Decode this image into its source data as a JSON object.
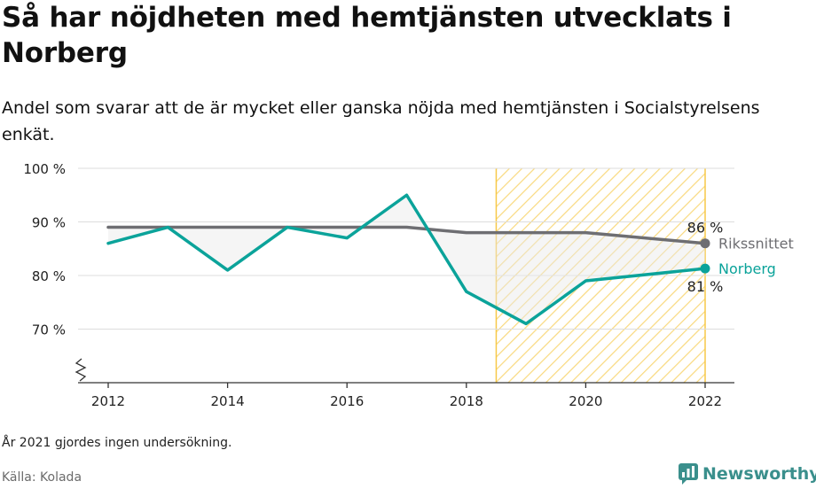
{
  "title": "Så har nöjdheten med hemtjänsten utvecklats i Norberg",
  "subtitle": "Andel som svarar att de är mycket eller ganska nöjda med hemtjänsten i Socialstyrelsens enkät.",
  "note": "År 2021 gjordes ingen undersökning.",
  "source": "Källa: Kolada",
  "brand": {
    "name": "Newsworthy",
    "icon": "newsworthy-logo-icon"
  },
  "colors": {
    "norberg": "#0ba39a",
    "riket": "#6e6e72",
    "highlight": "#f7c948"
  },
  "chart_data": {
    "type": "line",
    "x": [
      2012,
      2013,
      2014,
      2015,
      2016,
      2017,
      2018,
      2019,
      2020,
      2022
    ],
    "series": [
      {
        "name": "Rikssnittet",
        "values": [
          89,
          89,
          89,
          89,
          89,
          89,
          88,
          88,
          88,
          86
        ],
        "end_label": "86 %",
        "color": "#6e6e72"
      },
      {
        "name": "Norberg",
        "values": [
          86,
          89,
          81,
          89,
          87,
          95,
          77,
          71,
          79,
          81.3
        ],
        "end_label": "81 %",
        "color": "#0ba39a"
      }
    ],
    "xticks": [
      2012,
      2014,
      2016,
      2018,
      2020,
      2022
    ],
    "xtick_labels": [
      "2012",
      "2014",
      "2016",
      "2018",
      "2020",
      "2022"
    ],
    "yticks": [
      70,
      80,
      90,
      100
    ],
    "ytick_labels": [
      "70 %",
      "80 %",
      "90 %",
      "100 %"
    ],
    "xlim": [
      2012,
      2022
    ],
    "ylim": [
      60,
      100
    ],
    "y_axis_break": true,
    "highlight_range": [
      2018.5,
      2022
    ],
    "grid": "horizontal"
  }
}
